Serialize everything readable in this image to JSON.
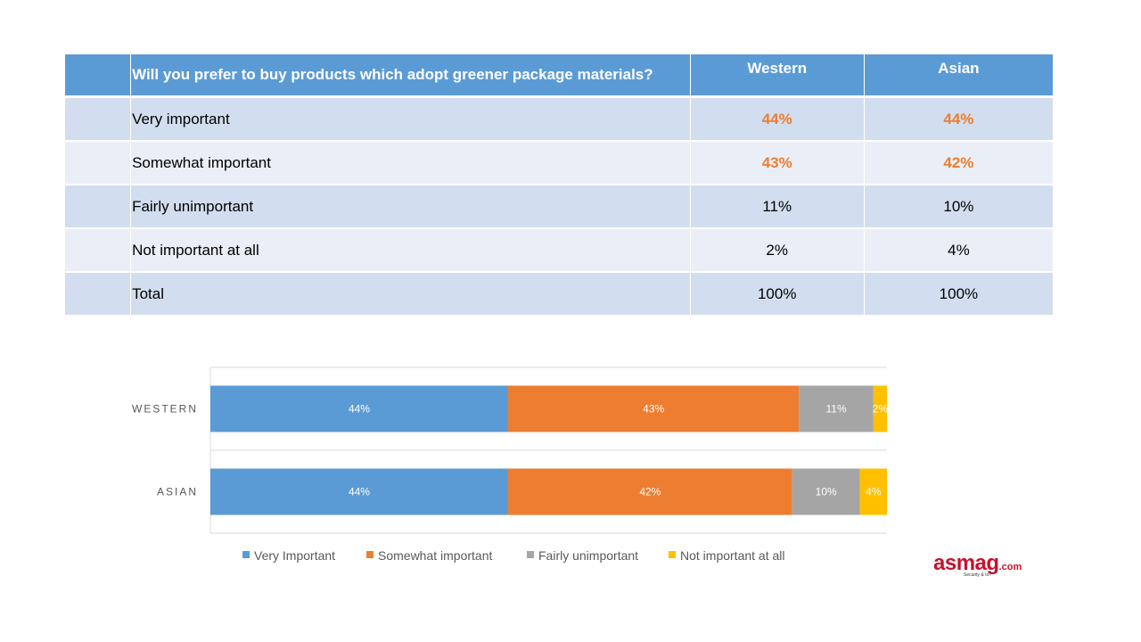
{
  "table": {
    "question": "Will you prefer to buy products which adopt greener package materials?",
    "columns": [
      "Western",
      "Asian"
    ],
    "rows": [
      {
        "label": "Very important",
        "western": "44%",
        "asian": "44%"
      },
      {
        "label": "Somewhat important",
        "western": "43%",
        "asian": "42%"
      },
      {
        "label": "Fairly unimportant",
        "western": "11%",
        "asian": "10%"
      },
      {
        "label": "Not important at all",
        "western": "2%",
        "asian": "4%"
      },
      {
        "label": "Total",
        "western": "100%",
        "asian": "100%"
      }
    ],
    "colors": {
      "header": "#5b9bd5",
      "row_dark": "#d2deef",
      "row_light": "#eaeff7",
      "highlight": "#ed7d31"
    }
  },
  "chart_data": {
    "type": "bar",
    "orientation": "horizontal",
    "stacked": "100%",
    "categories": [
      "WESTERN",
      "ASIAN"
    ],
    "series": [
      {
        "name": "Very Important",
        "values": [
          44,
          44
        ],
        "labels": [
          "44%",
          "44%"
        ],
        "color": "#5b9bd5"
      },
      {
        "name": "Somewhat important",
        "values": [
          43,
          42
        ],
        "labels": [
          "43%",
          "42%"
        ],
        "color": "#ed7d31"
      },
      {
        "name": "Fairly unimportant",
        "values": [
          11,
          10
        ],
        "labels": [
          "11%",
          "10%"
        ],
        "color": "#a5a5a5"
      },
      {
        "name": "Not important at all",
        "values": [
          2,
          4
        ],
        "labels": [
          "2%",
          "4%"
        ],
        "color": "#ffc000"
      }
    ],
    "xlim": [
      0,
      100
    ],
    "grid": true,
    "legend": "bottom"
  },
  "logo": {
    "main": "asmag",
    "suffix": ".com",
    "tagline": "Security & IoT"
  }
}
